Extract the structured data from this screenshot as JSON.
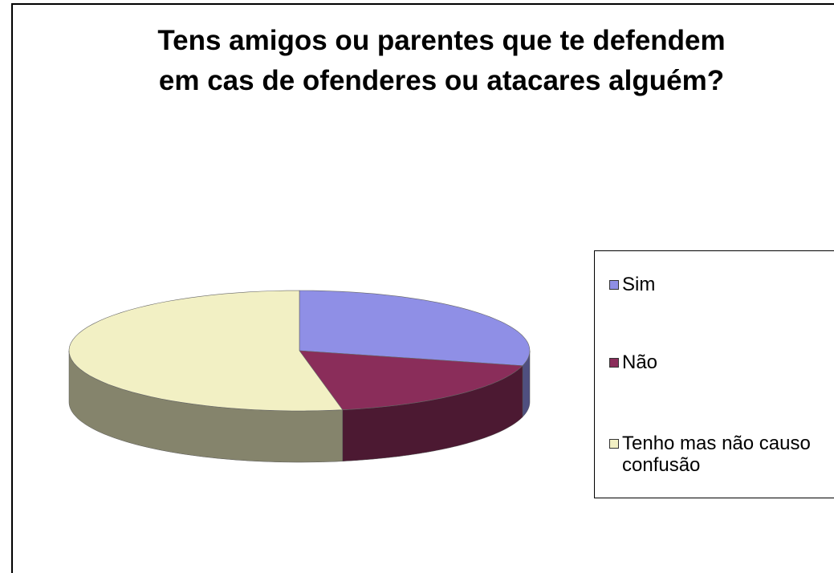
{
  "chart_data": {
    "type": "pie3d",
    "title": "Tens amigos ou parentes que te defendem em cas de ofenderes ou atacares alguém?",
    "categories": [
      "Sim",
      "Não",
      "Tenho mas não causo confusão"
    ],
    "values": [
      29,
      18,
      53
    ],
    "colors": [
      "#8f8fe6",
      "#8a2d5a",
      "#f2f0c4"
    ],
    "legend": "right"
  }
}
